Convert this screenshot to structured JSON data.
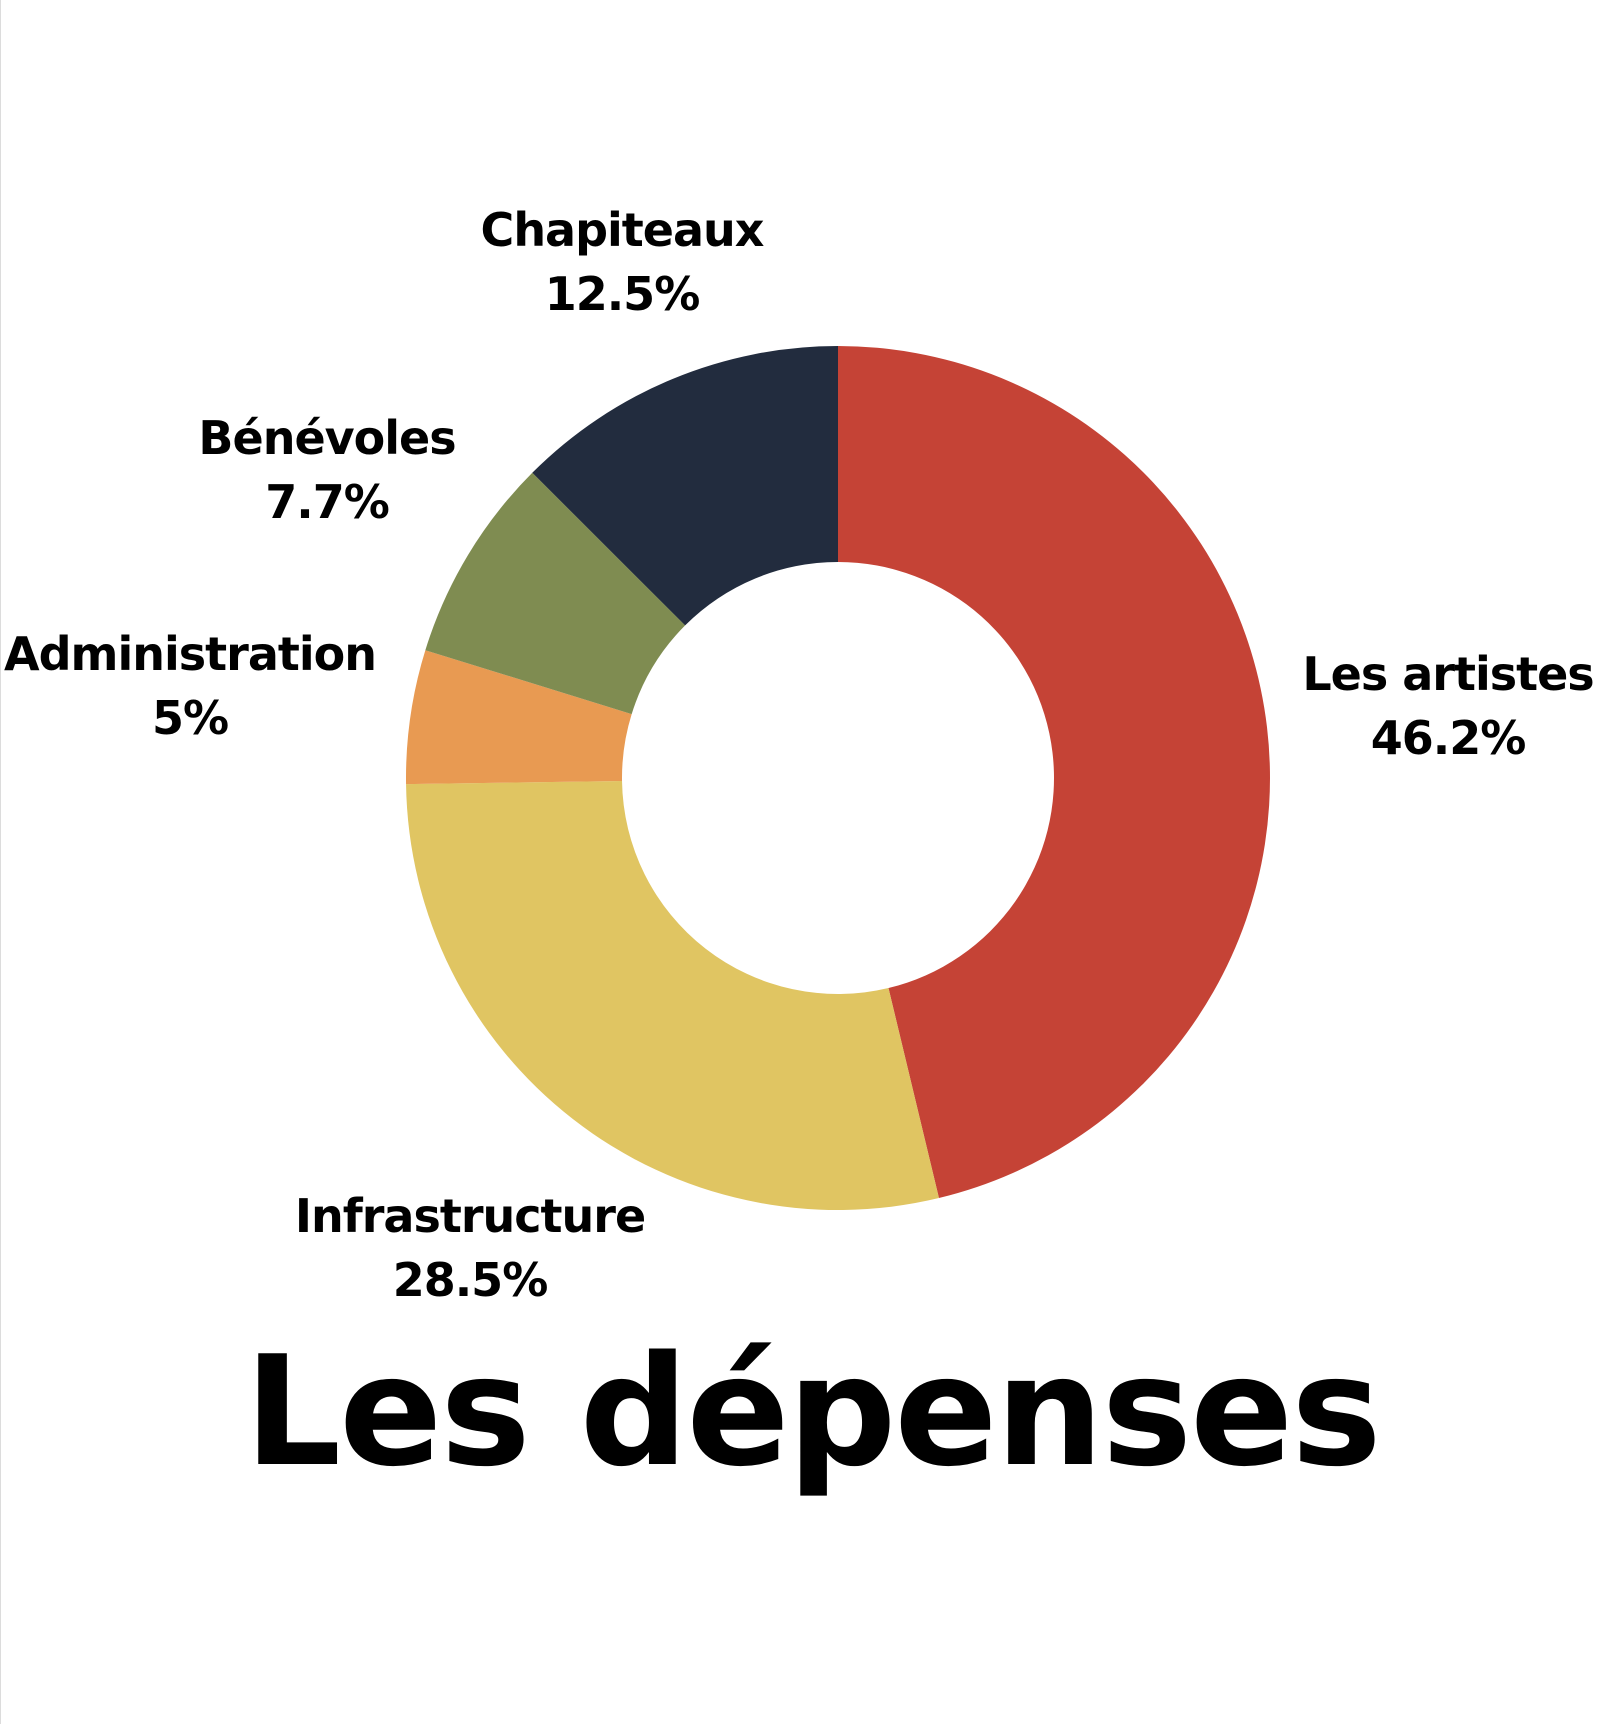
{
  "chart_data": {
    "type": "pie",
    "style": "donut",
    "title": "Les dépenses",
    "start_angle": "top (12 o'clock), clockwise",
    "slices": [
      {
        "label": "Les artistes",
        "value": 46.2,
        "value_label": "46.2%",
        "color": "#c54336"
      },
      {
        "label": "Infrastructure",
        "value": 28.5,
        "value_label": "28.5%",
        "color": "#e0c562"
      },
      {
        "label": "Administration",
        "value": 5,
        "value_label": "5%",
        "color": "#e89a52"
      },
      {
        "label": "Bénévoles",
        "value": 7.7,
        "value_label": "7.7%",
        "color": "#7f8c51"
      },
      {
        "label": "Chapiteaux",
        "value": 12.5,
        "value_label": "12.5%",
        "color": "#222c3e"
      }
    ]
  }
}
